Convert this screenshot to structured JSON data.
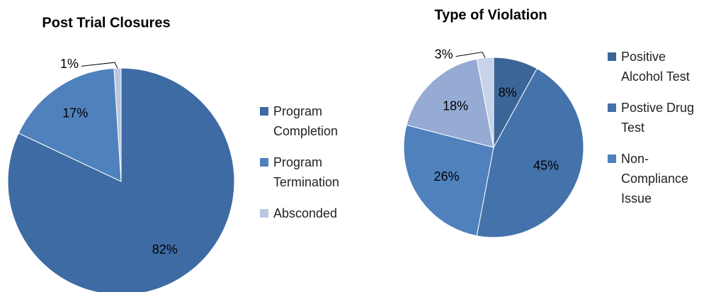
{
  "chart_data": [
    {
      "type": "pie",
      "title": "Post Trial Closures",
      "categories": [
        "Program Completion",
        "Program Termination",
        "Absconded"
      ],
      "values": [
        82,
        17,
        1
      ],
      "value_labels": [
        "82%",
        "17%",
        "1%"
      ],
      "colors": [
        "#3e6ba3",
        "#4f81bd",
        "#b8c8e2"
      ],
      "legend": "right"
    },
    {
      "type": "pie",
      "title": "Type of Violation",
      "categories": [
        "Positive Alcohol Test",
        "Postive Drug Test",
        "Non-Compliance Issue",
        null,
        null
      ],
      "values": [
        8,
        45,
        26,
        18,
        3
      ],
      "value_labels": [
        "8%",
        "45%",
        "26%",
        "18%",
        "3%"
      ],
      "colors": [
        "#3c6597",
        "#4472ab",
        "#4f81bd",
        "#95abd4",
        "#c6d3e9"
      ],
      "legend": "right"
    }
  ]
}
